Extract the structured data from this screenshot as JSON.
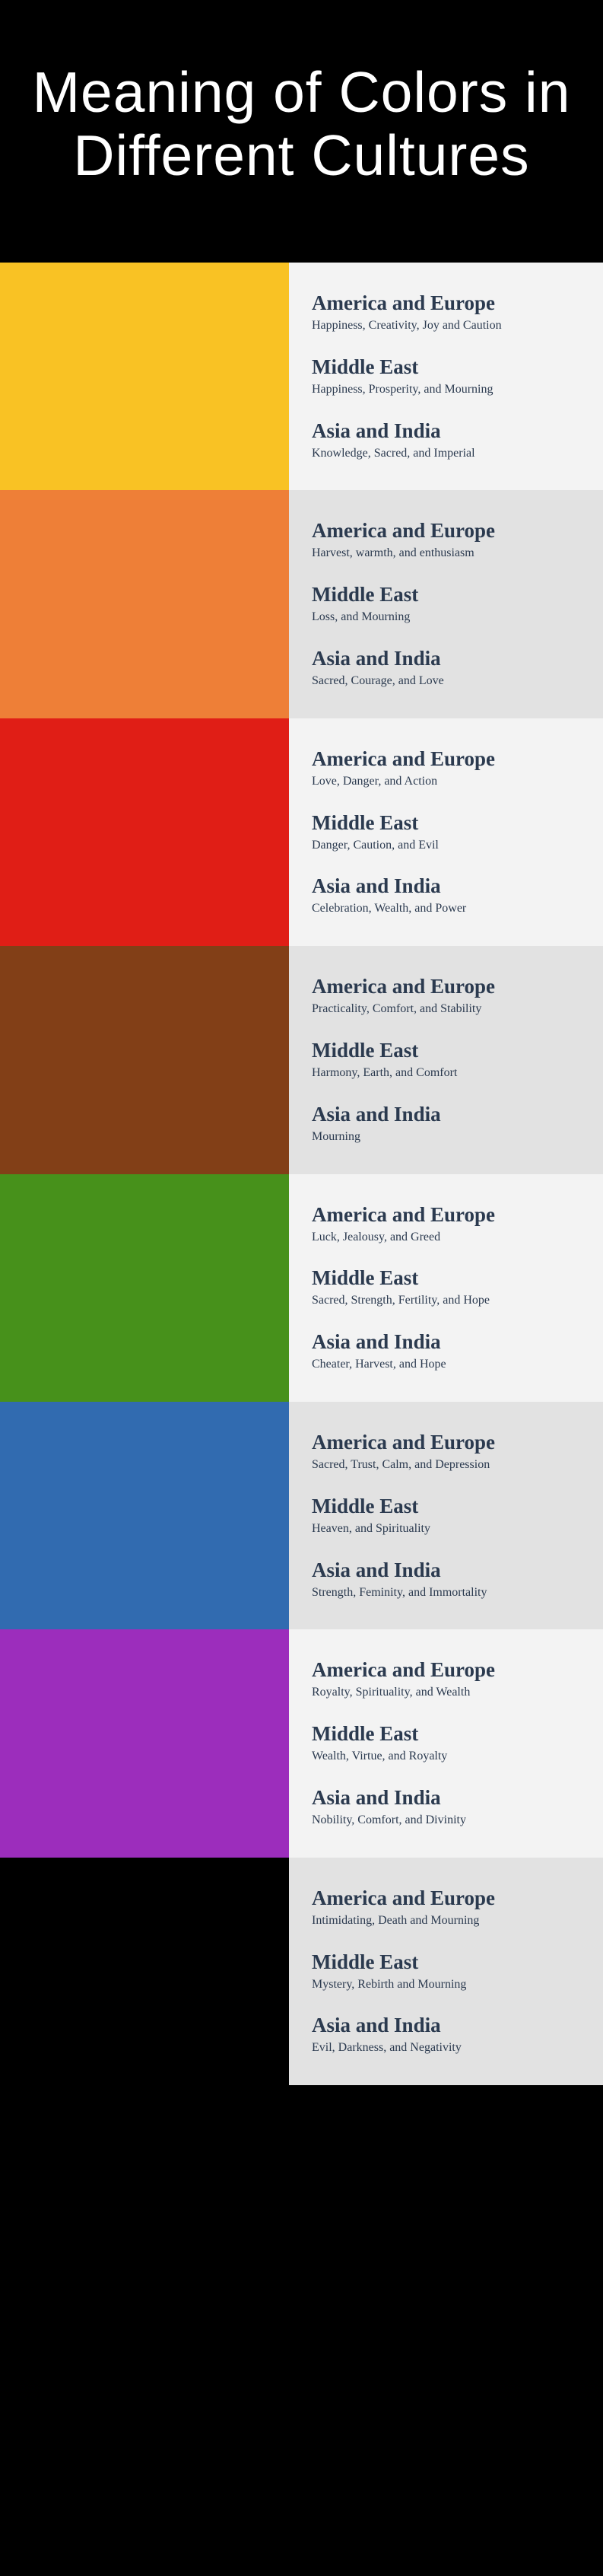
{
  "title": "Meaning of Colors in Different Cultures",
  "info_bg_light": "#f3f3f3",
  "info_bg_dark": "#e2e2e2",
  "colors": [
    {
      "swatch": "#f9c224",
      "info_bg": "#f3f3f3",
      "regions": [
        {
          "name": "America and Europe",
          "meaning": "Happiness, Creativity, Joy  and Caution"
        },
        {
          "name": "Middle East",
          "meaning": "Happiness, Prosperity, and Mourning"
        },
        {
          "name": "Asia and India",
          "meaning": "Knowledge, Sacred, and Imperial"
        }
      ]
    },
    {
      "swatch": "#ee7f37",
      "info_bg": "#e2e2e2",
      "regions": [
        {
          "name": "America and Europe",
          "meaning": "Harvest, warmth, and enthusiasm"
        },
        {
          "name": "Middle East",
          "meaning": "Loss, and Mourning"
        },
        {
          "name": "Asia and India",
          "meaning": "Sacred, Courage, and Love"
        }
      ]
    },
    {
      "swatch": "#e01e16",
      "info_bg": "#f3f3f3",
      "regions": [
        {
          "name": "America and Europe",
          "meaning": "Love, Danger, and Action"
        },
        {
          "name": "Middle East",
          "meaning": "Danger, Caution, and Evil"
        },
        {
          "name": "Asia and India",
          "meaning": "Celebration, Wealth, and Power"
        }
      ]
    },
    {
      "swatch": "#823f17",
      "info_bg": "#e2e2e2",
      "regions": [
        {
          "name": "America and Europe",
          "meaning": "Practicality, Comfort, and Stability"
        },
        {
          "name": "Middle East",
          "meaning": "Harmony, Earth, and Comfort"
        },
        {
          "name": "Asia and India",
          "meaning": "Mourning"
        }
      ]
    },
    {
      "swatch": "#47911b",
      "info_bg": "#f3f3f3",
      "regions": [
        {
          "name": "America and Europe",
          "meaning": "Luck, Jealousy, and Greed"
        },
        {
          "name": "Middle East",
          "meaning": "Sacred, Strength, Fertility, and Hope"
        },
        {
          "name": "Asia and India",
          "meaning": "Cheater, Harvest, and Hope"
        }
      ]
    },
    {
      "swatch": "#316bb0",
      "info_bg": "#e2e2e2",
      "regions": [
        {
          "name": "America and Europe",
          "meaning": "Sacred, Trust, Calm, and Depression"
        },
        {
          "name": "Middle East",
          "meaning": "Heaven, and Spirituality"
        },
        {
          "name": "Asia and India",
          "meaning": "Strength,  Feminity, and Immortality"
        }
      ]
    },
    {
      "swatch": "#9c2dbc",
      "info_bg": "#f3f3f3",
      "regions": [
        {
          "name": "America and Europe",
          "meaning": "Royalty, Spirituality, and Wealth"
        },
        {
          "name": "Middle East",
          "meaning": "Wealth, Virtue, and Royalty"
        },
        {
          "name": "Asia and India",
          "meaning": "Nobility, Comfort, and Divinity"
        }
      ]
    },
    {
      "swatch": "#000000",
      "info_bg": "#e2e2e2",
      "regions": [
        {
          "name": "America and Europe",
          "meaning": "Intimidating, Death and Mourning"
        },
        {
          "name": "Middle East",
          "meaning": "Mystery, Rebirth and Mourning"
        },
        {
          "name": "Asia and India",
          "meaning": "Evil, Darkness, and Negativity"
        }
      ]
    }
  ]
}
